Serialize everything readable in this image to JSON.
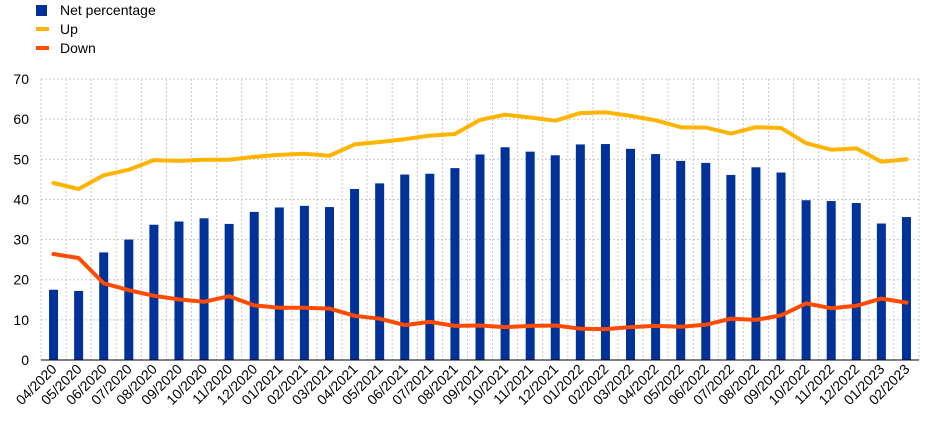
{
  "chart_data": {
    "type": "bar",
    "title": "",
    "xlabel": "",
    "ylabel": "",
    "ylim": [
      0,
      70
    ],
    "yticks": [
      0,
      10,
      20,
      30,
      40,
      50,
      60,
      70
    ],
    "grid": true,
    "legend_position": "top-left",
    "categories": [
      "04/2020",
      "05/2020",
      "06/2020",
      "07/2020",
      "08/2020",
      "09/2020",
      "10/2020",
      "11/2020",
      "12/2020",
      "01/2021",
      "02/2021",
      "03/2021",
      "04/2021",
      "05/2021",
      "06/2021",
      "07/2021",
      "08/2021",
      "09/2021",
      "10/2021",
      "11/2021",
      "12/2021",
      "01/2022",
      "02/2022",
      "03/2022",
      "04/2022",
      "05/2022",
      "06/2022",
      "07/2022",
      "08/2022",
      "09/2022",
      "10/2022",
      "11/2022",
      "12/2022",
      "01/2023",
      "02/2023"
    ],
    "series": [
      {
        "name": "Net percentage",
        "type": "bar",
        "color": "#003299",
        "values": [
          17.5,
          17.2,
          26.8,
          30.0,
          33.7,
          34.5,
          35.3,
          33.9,
          36.9,
          38.0,
          38.4,
          38.1,
          42.6,
          44.0,
          46.2,
          46.4,
          47.8,
          51.2,
          53.0,
          51.9,
          51.0,
          53.7,
          53.8,
          52.6,
          51.3,
          49.6,
          49.1,
          46.1,
          48.0,
          46.7,
          39.8,
          39.6,
          39.1,
          34.0,
          35.6
        ]
      },
      {
        "name": "Up",
        "type": "line",
        "color": "#FFB400",
        "values": [
          44.1,
          42.6,
          46.0,
          47.4,
          49.8,
          49.6,
          49.9,
          49.9,
          50.6,
          51.1,
          51.4,
          50.9,
          53.7,
          54.3,
          55.0,
          55.9,
          56.3,
          59.8,
          61.1,
          60.4,
          59.6,
          61.5,
          61.7,
          60.8,
          59.7,
          58.0,
          57.9,
          56.4,
          58.0,
          57.8,
          54.0,
          52.4,
          52.7,
          49.4,
          50.0
        ]
      },
      {
        "name": "Down",
        "type": "line",
        "color": "#FF4B00",
        "values": [
          26.4,
          25.4,
          19.1,
          17.4,
          16.0,
          15.1,
          14.5,
          15.9,
          13.6,
          13.0,
          13.0,
          12.8,
          11.0,
          10.3,
          8.7,
          9.5,
          8.5,
          8.6,
          8.2,
          8.5,
          8.6,
          7.8,
          7.7,
          8.2,
          8.5,
          8.3,
          8.8,
          10.3,
          10.0,
          11.1,
          14.1,
          12.9,
          13.5,
          15.3,
          14.3
        ]
      }
    ]
  }
}
